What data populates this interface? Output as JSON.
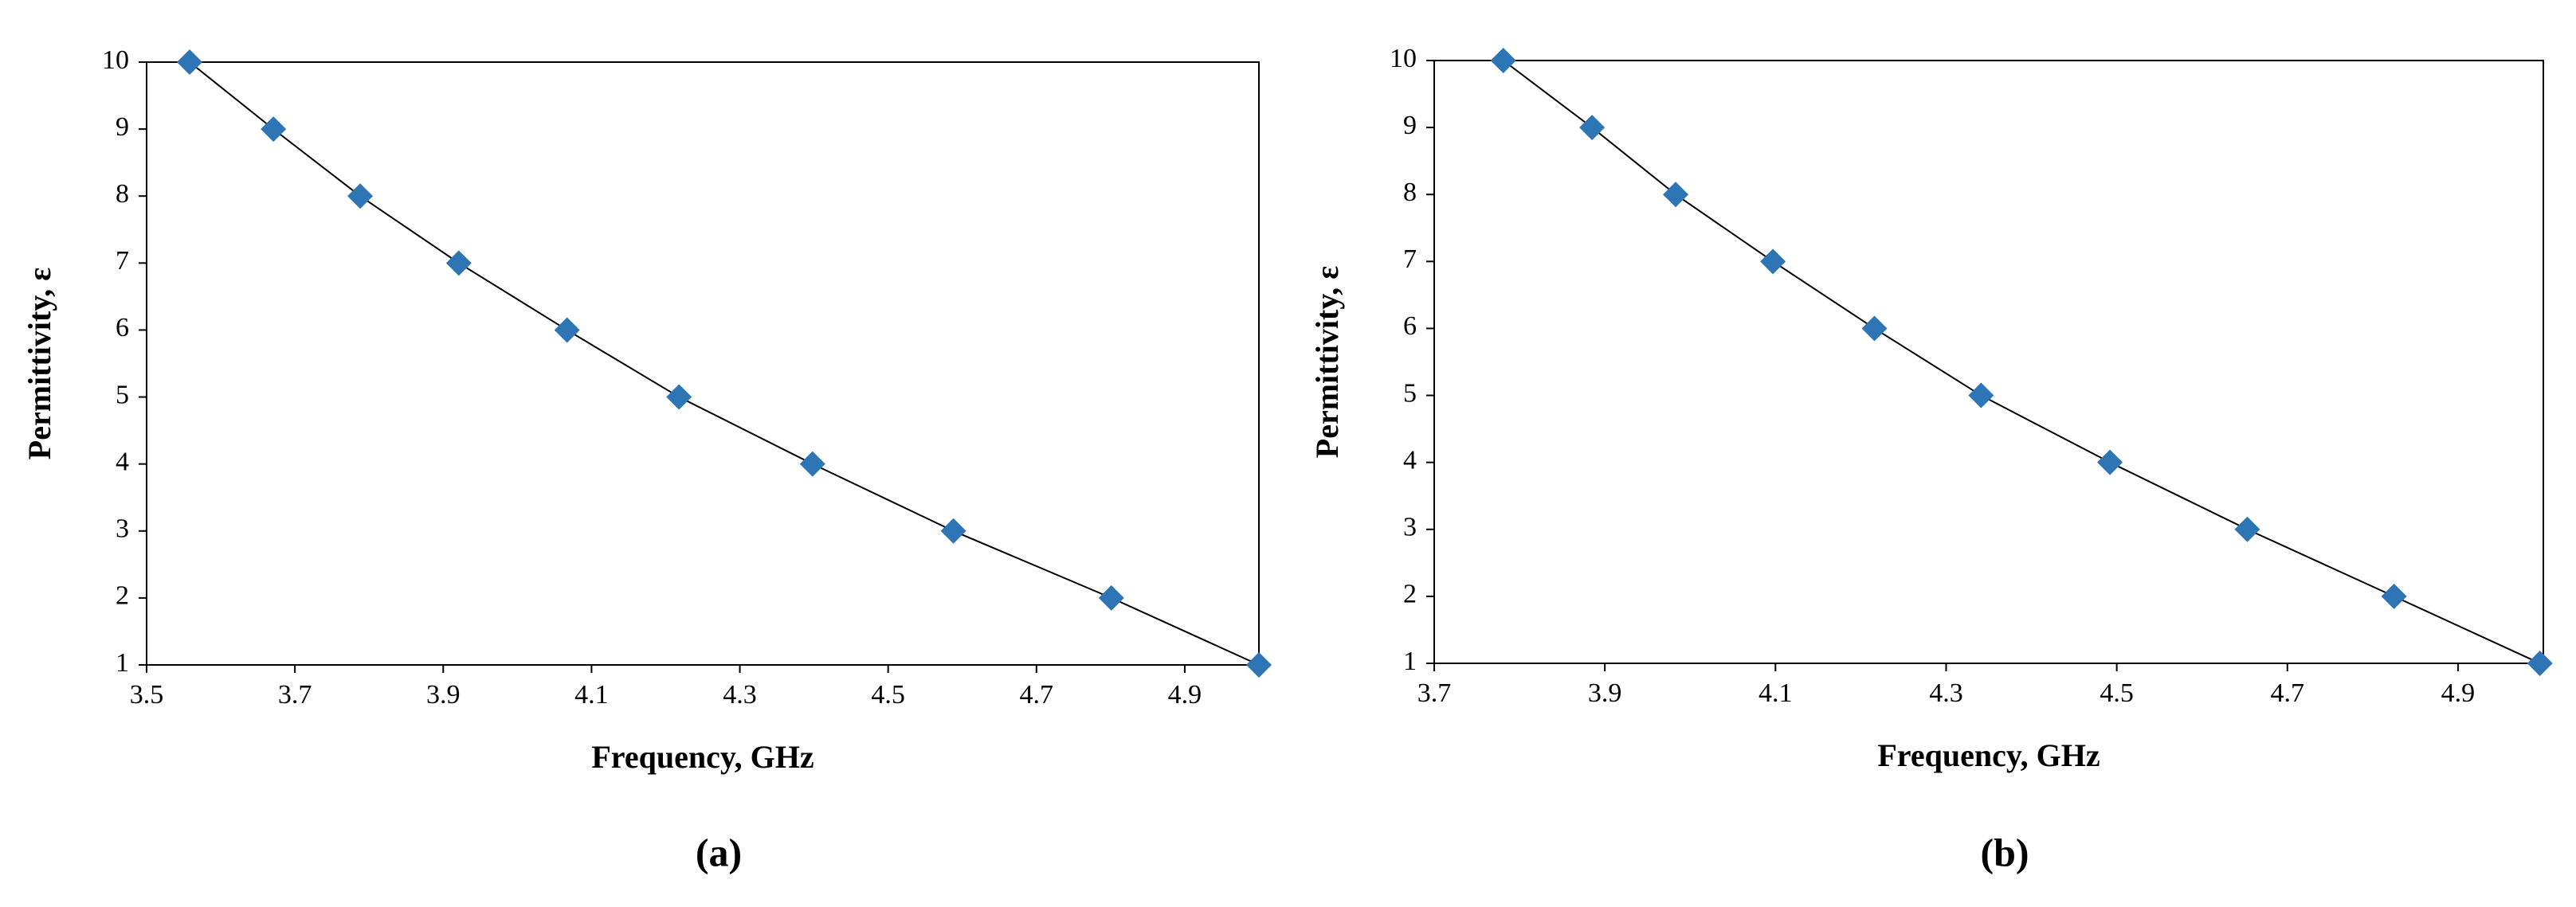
{
  "chart_data": [
    {
      "type": "scatter",
      "caption": "(a)",
      "xlabel": "Frequency, GHz",
      "ylabel": "Permittivity, ε",
      "x": [
        3.558,
        3.671,
        3.788,
        3.921,
        4.067,
        4.218,
        4.398,
        4.588,
        4.801,
        5.0
      ],
      "values": [
        10,
        9,
        8,
        7,
        6,
        5,
        4,
        3,
        2,
        1
      ],
      "color": "#2e75b6",
      "line_color": "#000000",
      "xlim": [
        3.5,
        5.0
      ],
      "xticks": [
        3.5,
        3.7,
        3.9,
        4.1,
        4.3,
        4.5,
        4.7,
        4.9
      ],
      "ylim": [
        1,
        10
      ],
      "yticks": [
        1,
        2,
        3,
        4,
        5,
        6,
        7,
        8,
        9,
        10
      ]
    },
    {
      "type": "scatter",
      "caption": "(b)",
      "xlabel": "Frequency, GHz",
      "ylabel": "Permittivity, ε",
      "x": [
        3.781,
        3.885,
        3.983,
        4.097,
        4.216,
        4.341,
        4.492,
        4.653,
        4.825,
        4.996
      ],
      "values": [
        10,
        9,
        8,
        7,
        6,
        5,
        4,
        3,
        2,
        1
      ],
      "color": "#2e75b6",
      "line_color": "#000000",
      "xlim": [
        3.7,
        5.0
      ],
      "xticks": [
        3.7,
        3.9,
        4.1,
        4.3,
        4.5,
        4.7,
        4.9
      ],
      "ylim": [
        1,
        10
      ],
      "yticks": [
        1,
        2,
        3,
        4,
        5,
        6,
        7,
        8,
        9,
        10
      ]
    }
  ]
}
